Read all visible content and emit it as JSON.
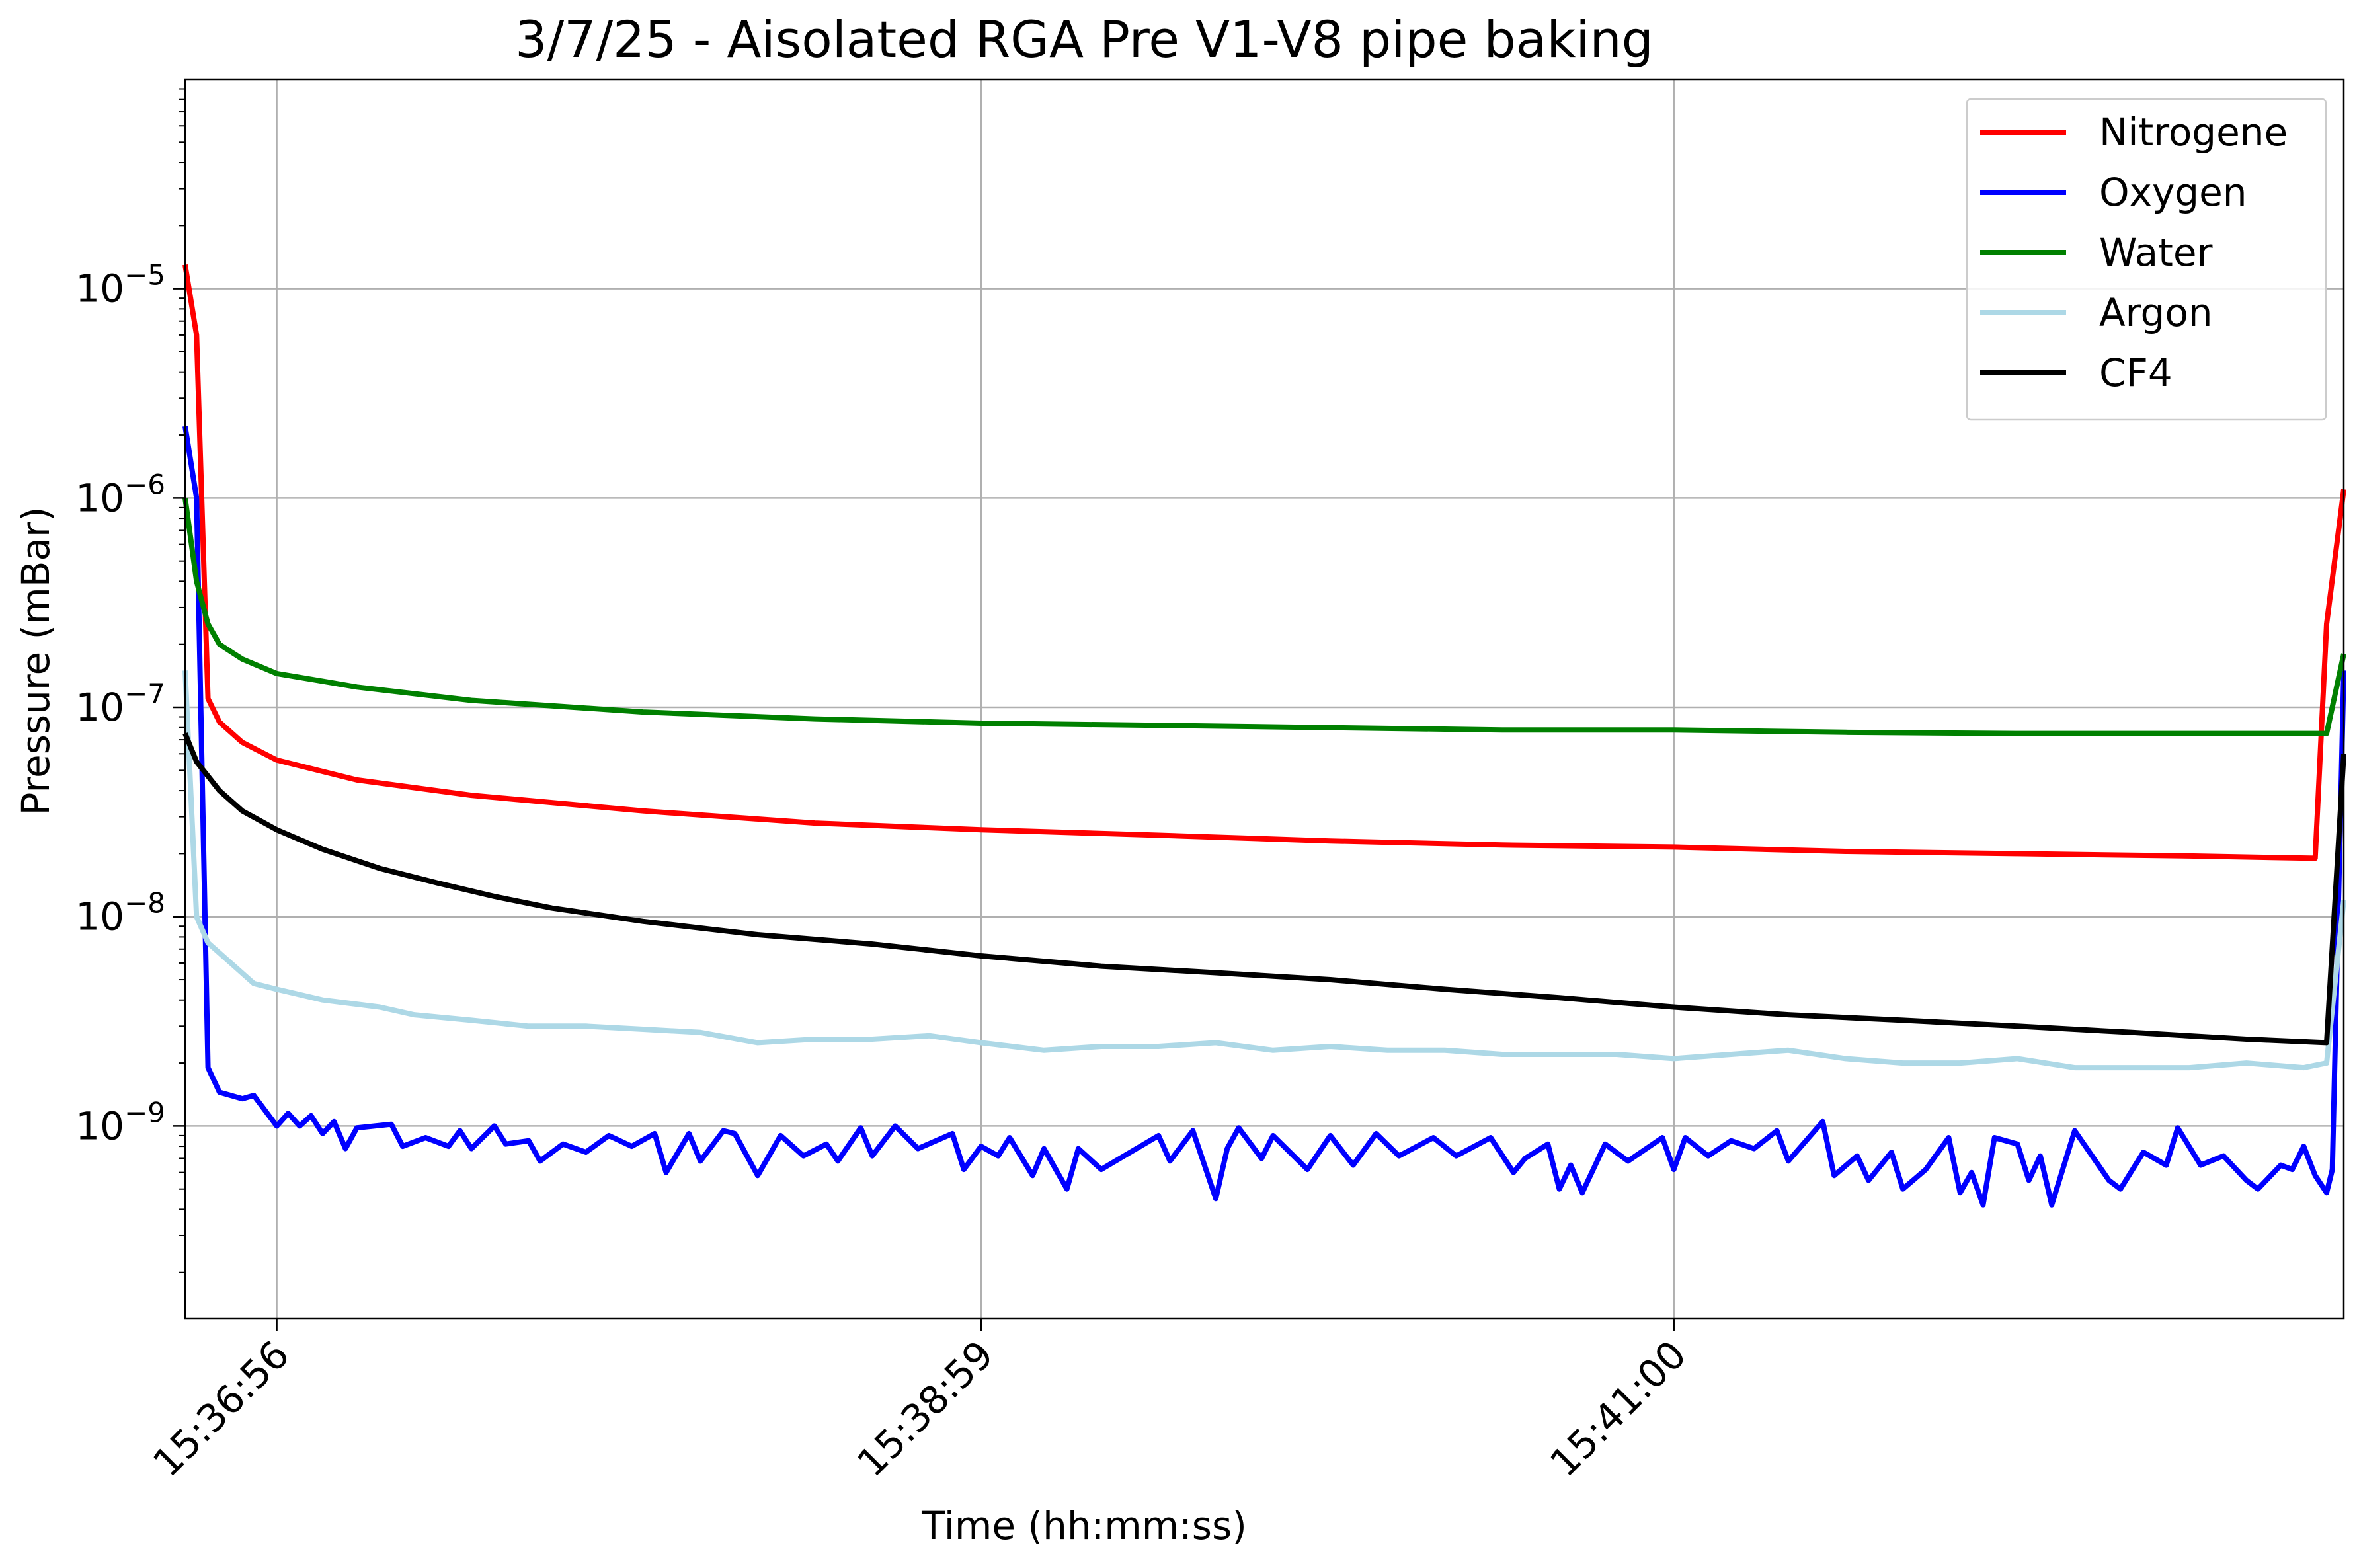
{
  "chart_data": {
    "type": "line",
    "title": "3/7/25 - Aisolated RGA Pre V1-V8 pipe baking",
    "xlabel": "Time (hh:mm:ss)",
    "ylabel": "Pressure (mBar)",
    "yscale": "log",
    "xlim": [
      "15:36:40",
      "15:42:57"
    ],
    "ylim": [
      1.2e-10,
      0.0001
    ],
    "x_ticks": [
      {
        "t": "15:36:56",
        "label": "15:36:56"
      },
      {
        "t": "15:38:59",
        "label": "15:38:59"
      },
      {
        "t": "15:41:00",
        "label": "15:41:00"
      }
    ],
    "y_ticks": [
      {
        "value": 1e-09,
        "base": "10",
        "exp": "−9"
      },
      {
        "value": 1e-08,
        "base": "10",
        "exp": "−8"
      },
      {
        "value": 1e-07,
        "base": "10",
        "exp": "−7"
      },
      {
        "value": 1e-06,
        "base": "10",
        "exp": "−6"
      },
      {
        "value": 1e-05,
        "base": "10",
        "exp": "−5"
      }
    ],
    "grid": true,
    "legend_position": "top-right",
    "series": [
      {
        "name": "Nitrogene",
        "color": "#ff0000",
        "points": [
          [
            "15:36:40",
            1.3e-05
          ],
          [
            "15:36:42",
            6e-06
          ],
          [
            "15:36:44",
            1.1e-07
          ],
          [
            "15:36:46",
            8.5e-08
          ],
          [
            "15:36:50",
            6.8e-08
          ],
          [
            "15:36:56",
            5.6e-08
          ],
          [
            "15:37:10",
            4.5e-08
          ],
          [
            "15:37:30",
            3.8e-08
          ],
          [
            "15:38:00",
            3.2e-08
          ],
          [
            "15:38:30",
            2.8e-08
          ],
          [
            "15:38:59",
            2.6e-08
          ],
          [
            "15:39:30",
            2.45e-08
          ],
          [
            "15:40:00",
            2.3e-08
          ],
          [
            "15:40:30",
            2.2e-08
          ],
          [
            "15:41:00",
            2.15e-08
          ],
          [
            "15:41:30",
            2.05e-08
          ],
          [
            "15:42:00",
            2e-08
          ],
          [
            "15:42:30",
            1.95e-08
          ],
          [
            "15:42:52",
            1.9e-08
          ],
          [
            "15:42:54",
            2.5e-07
          ],
          [
            "15:42:57",
            1.1e-06
          ]
        ]
      },
      {
        "name": "Oxygen",
        "color": "#0000ff",
        "points": [
          [
            "15:36:40",
            2.2e-06
          ],
          [
            "15:36:42",
            1e-06
          ],
          [
            "15:36:44",
            1.9e-09
          ],
          [
            "15:36:46",
            1.45e-09
          ],
          [
            "15:36:50",
            1.35e-09
          ],
          [
            "15:36:52",
            1.4e-09
          ],
          [
            "15:36:56",
            1e-09
          ],
          [
            "15:36:58",
            1.15e-09
          ],
          [
            "15:37:00",
            1e-09
          ],
          [
            "15:37:02",
            1.12e-09
          ],
          [
            "15:37:04",
            9.2e-10
          ],
          [
            "15:37:06",
            1.05e-09
          ],
          [
            "15:37:08",
            7.8e-10
          ],
          [
            "15:37:10",
            9.8e-10
          ],
          [
            "15:37:16",
            1.02e-09
          ],
          [
            "15:37:18",
            8e-10
          ],
          [
            "15:37:22",
            8.8e-10
          ],
          [
            "15:37:26",
            8e-10
          ],
          [
            "15:37:28",
            9.5e-10
          ],
          [
            "15:37:30",
            7.8e-10
          ],
          [
            "15:37:34",
            1e-09
          ],
          [
            "15:37:36",
            8.2e-10
          ],
          [
            "15:37:40",
            8.5e-10
          ],
          [
            "15:37:42",
            6.8e-10
          ],
          [
            "15:37:46",
            8.2e-10
          ],
          [
            "15:37:50",
            7.5e-10
          ],
          [
            "15:37:54",
            9e-10
          ],
          [
            "15:37:58",
            8e-10
          ],
          [
            "15:38:02",
            9.2e-10
          ],
          [
            "15:38:04",
            6e-10
          ],
          [
            "15:38:08",
            9.2e-10
          ],
          [
            "15:38:10",
            6.8e-10
          ],
          [
            "15:38:14",
            9.5e-10
          ],
          [
            "15:38:16",
            9.2e-10
          ],
          [
            "15:38:20",
            5.8e-10
          ],
          [
            "15:38:24",
            9e-10
          ],
          [
            "15:38:28",
            7.2e-10
          ],
          [
            "15:38:32",
            8.2e-10
          ],
          [
            "15:38:34",
            6.8e-10
          ],
          [
            "15:38:38",
            9.8e-10
          ],
          [
            "15:38:40",
            7.2e-10
          ],
          [
            "15:38:44",
            1e-09
          ],
          [
            "15:38:48",
            7.8e-10
          ],
          [
            "15:38:54",
            9.2e-10
          ],
          [
            "15:38:56",
            6.2e-10
          ],
          [
            "15:38:59",
            8e-10
          ],
          [
            "15:39:02",
            7.2e-10
          ],
          [
            "15:39:04",
            8.8e-10
          ],
          [
            "15:39:08",
            5.8e-10
          ],
          [
            "15:39:10",
            7.8e-10
          ],
          [
            "15:39:14",
            5e-10
          ],
          [
            "15:39:16",
            7.8e-10
          ],
          [
            "15:39:20",
            6.2e-10
          ],
          [
            "15:39:24",
            7.2e-10
          ],
          [
            "15:39:30",
            9e-10
          ],
          [
            "15:39:32",
            6.8e-10
          ],
          [
            "15:39:36",
            9.5e-10
          ],
          [
            "15:39:40",
            4.5e-10
          ],
          [
            "15:39:42",
            7.8e-10
          ],
          [
            "15:39:44",
            9.8e-10
          ],
          [
            "15:39:48",
            7e-10
          ],
          [
            "15:39:50",
            9e-10
          ],
          [
            "15:39:56",
            6.2e-10
          ],
          [
            "15:40:00",
            9e-10
          ],
          [
            "15:40:04",
            6.5e-10
          ],
          [
            "15:40:08",
            9.2e-10
          ],
          [
            "15:40:12",
            7.2e-10
          ],
          [
            "15:40:18",
            8.8e-10
          ],
          [
            "15:40:22",
            7.2e-10
          ],
          [
            "15:40:28",
            8.8e-10
          ],
          [
            "15:40:32",
            6e-10
          ],
          [
            "15:40:34",
            7e-10
          ],
          [
            "15:40:38",
            8.2e-10
          ],
          [
            "15:40:40",
            5e-10
          ],
          [
            "15:40:42",
            6.5e-10
          ],
          [
            "15:40:44",
            4.8e-10
          ],
          [
            "15:40:48",
            8.2e-10
          ],
          [
            "15:40:52",
            6.8e-10
          ],
          [
            "15:40:58",
            8.8e-10
          ],
          [
            "15:41:00",
            6.2e-10
          ],
          [
            "15:41:02",
            8.8e-10
          ],
          [
            "15:41:06",
            7.2e-10
          ],
          [
            "15:41:10",
            8.5e-10
          ],
          [
            "15:41:14",
            7.8e-10
          ],
          [
            "15:41:18",
            9.5e-10
          ],
          [
            "15:41:20",
            6.8e-10
          ],
          [
            "15:41:26",
            1.05e-09
          ],
          [
            "15:41:28",
            5.8e-10
          ],
          [
            "15:41:32",
            7.2e-10
          ],
          [
            "15:41:34",
            5.5e-10
          ],
          [
            "15:41:38",
            7.5e-10
          ],
          [
            "15:41:40",
            5e-10
          ],
          [
            "15:41:44",
            6.2e-10
          ],
          [
            "15:41:48",
            8.8e-10
          ],
          [
            "15:41:50",
            4.8e-10
          ],
          [
            "15:41:52",
            6e-10
          ],
          [
            "15:41:54",
            4.2e-10
          ],
          [
            "15:41:56",
            8.8e-10
          ],
          [
            "15:42:00",
            8.2e-10
          ],
          [
            "15:42:02",
            5.5e-10
          ],
          [
            "15:42:04",
            7.2e-10
          ],
          [
            "15:42:06",
            4.2e-10
          ],
          [
            "15:42:10",
            9.5e-10
          ],
          [
            "15:42:16",
            5.5e-10
          ],
          [
            "15:42:18",
            5e-10
          ],
          [
            "15:42:22",
            7.5e-10
          ],
          [
            "15:42:26",
            6.5e-10
          ],
          [
            "15:42:28",
            9.8e-10
          ],
          [
            "15:42:32",
            6.5e-10
          ],
          [
            "15:42:36",
            7.2e-10
          ],
          [
            "15:42:40",
            5.5e-10
          ],
          [
            "15:42:42",
            5e-10
          ],
          [
            "15:42:46",
            6.5e-10
          ],
          [
            "15:42:48",
            6.2e-10
          ],
          [
            "15:42:50",
            8e-10
          ],
          [
            "15:42:52",
            5.8e-10
          ],
          [
            "15:42:54",
            4.8e-10
          ],
          [
            "15:42:55",
            6.2e-10
          ],
          [
            "15:42:57",
            1.5e-07
          ]
        ]
      },
      {
        "name": "Water",
        "color": "#008000",
        "points": [
          [
            "15:36:40",
            1e-06
          ],
          [
            "15:36:42",
            4e-07
          ],
          [
            "15:36:44",
            2.5e-07
          ],
          [
            "15:36:46",
            2e-07
          ],
          [
            "15:36:50",
            1.7e-07
          ],
          [
            "15:36:56",
            1.45e-07
          ],
          [
            "15:37:10",
            1.25e-07
          ],
          [
            "15:37:30",
            1.08e-07
          ],
          [
            "15:38:00",
            9.5e-08
          ],
          [
            "15:38:30",
            8.8e-08
          ],
          [
            "15:38:59",
            8.4e-08
          ],
          [
            "15:39:30",
            8.2e-08
          ],
          [
            "15:40:00",
            8e-08
          ],
          [
            "15:40:30",
            7.8e-08
          ],
          [
            "15:41:00",
            7.8e-08
          ],
          [
            "15:41:30",
            7.6e-08
          ],
          [
            "15:42:00",
            7.5e-08
          ],
          [
            "15:42:30",
            7.5e-08
          ],
          [
            "15:42:54",
            7.5e-08
          ],
          [
            "15:42:57",
            1.8e-07
          ]
        ]
      },
      {
        "name": "Argon",
        "color": "#add8e6",
        "points": [
          [
            "15:36:40",
            1.5e-07
          ],
          [
            "15:36:42",
            1e-08
          ],
          [
            "15:36:44",
            7.5e-09
          ],
          [
            "15:36:48",
            6e-09
          ],
          [
            "15:36:52",
            4.8e-09
          ],
          [
            "15:36:56",
            4.5e-09
          ],
          [
            "15:37:04",
            4e-09
          ],
          [
            "15:37:14",
            3.7e-09
          ],
          [
            "15:37:20",
            3.4e-09
          ],
          [
            "15:37:30",
            3.2e-09
          ],
          [
            "15:37:40",
            3e-09
          ],
          [
            "15:37:50",
            3e-09
          ],
          [
            "15:38:00",
            2.9e-09
          ],
          [
            "15:38:10",
            2.8e-09
          ],
          [
            "15:38:20",
            2.5e-09
          ],
          [
            "15:38:30",
            2.6e-09
          ],
          [
            "15:38:40",
            2.6e-09
          ],
          [
            "15:38:50",
            2.7e-09
          ],
          [
            "15:38:59",
            2.5e-09
          ],
          [
            "15:39:10",
            2.3e-09
          ],
          [
            "15:39:20",
            2.4e-09
          ],
          [
            "15:39:30",
            2.4e-09
          ],
          [
            "15:39:40",
            2.5e-09
          ],
          [
            "15:39:50",
            2.3e-09
          ],
          [
            "15:40:00",
            2.4e-09
          ],
          [
            "15:40:10",
            2.3e-09
          ],
          [
            "15:40:20",
            2.3e-09
          ],
          [
            "15:40:30",
            2.2e-09
          ],
          [
            "15:40:40",
            2.2e-09
          ],
          [
            "15:40:50",
            2.2e-09
          ],
          [
            "15:41:00",
            2.1e-09
          ],
          [
            "15:41:10",
            2.2e-09
          ],
          [
            "15:41:20",
            2.3e-09
          ],
          [
            "15:41:30",
            2.1e-09
          ],
          [
            "15:41:40",
            2e-09
          ],
          [
            "15:41:50",
            2e-09
          ],
          [
            "15:42:00",
            2.1e-09
          ],
          [
            "15:42:10",
            1.9e-09
          ],
          [
            "15:42:20",
            1.9e-09
          ],
          [
            "15:42:30",
            1.9e-09
          ],
          [
            "15:42:40",
            2e-09
          ],
          [
            "15:42:50",
            1.9e-09
          ],
          [
            "15:42:54",
            2e-09
          ],
          [
            "15:42:57",
            1.2e-08
          ]
        ]
      },
      {
        "name": "CF4",
        "color": "#000000",
        "points": [
          [
            "15:36:40",
            7.5e-08
          ],
          [
            "15:36:42",
            5.5e-08
          ],
          [
            "15:36:46",
            4e-08
          ],
          [
            "15:36:50",
            3.2e-08
          ],
          [
            "15:36:56",
            2.6e-08
          ],
          [
            "15:37:04",
            2.1e-08
          ],
          [
            "15:37:14",
            1.7e-08
          ],
          [
            "15:37:24",
            1.45e-08
          ],
          [
            "15:37:34",
            1.25e-08
          ],
          [
            "15:37:44",
            1.1e-08
          ],
          [
            "15:38:00",
            9.5e-09
          ],
          [
            "15:38:20",
            8.2e-09
          ],
          [
            "15:38:40",
            7.4e-09
          ],
          [
            "15:38:59",
            6.5e-09
          ],
          [
            "15:39:20",
            5.8e-09
          ],
          [
            "15:39:40",
            5.4e-09
          ],
          [
            "15:40:00",
            5e-09
          ],
          [
            "15:40:20",
            4.5e-09
          ],
          [
            "15:40:40",
            4.1e-09
          ],
          [
            "15:41:00",
            3.7e-09
          ],
          [
            "15:41:20",
            3.4e-09
          ],
          [
            "15:41:40",
            3.2e-09
          ],
          [
            "15:42:00",
            3e-09
          ],
          [
            "15:42:20",
            2.8e-09
          ],
          [
            "15:42:40",
            2.6e-09
          ],
          [
            "15:42:54",
            2.5e-09
          ],
          [
            "15:42:57",
            6e-08
          ]
        ]
      }
    ]
  }
}
